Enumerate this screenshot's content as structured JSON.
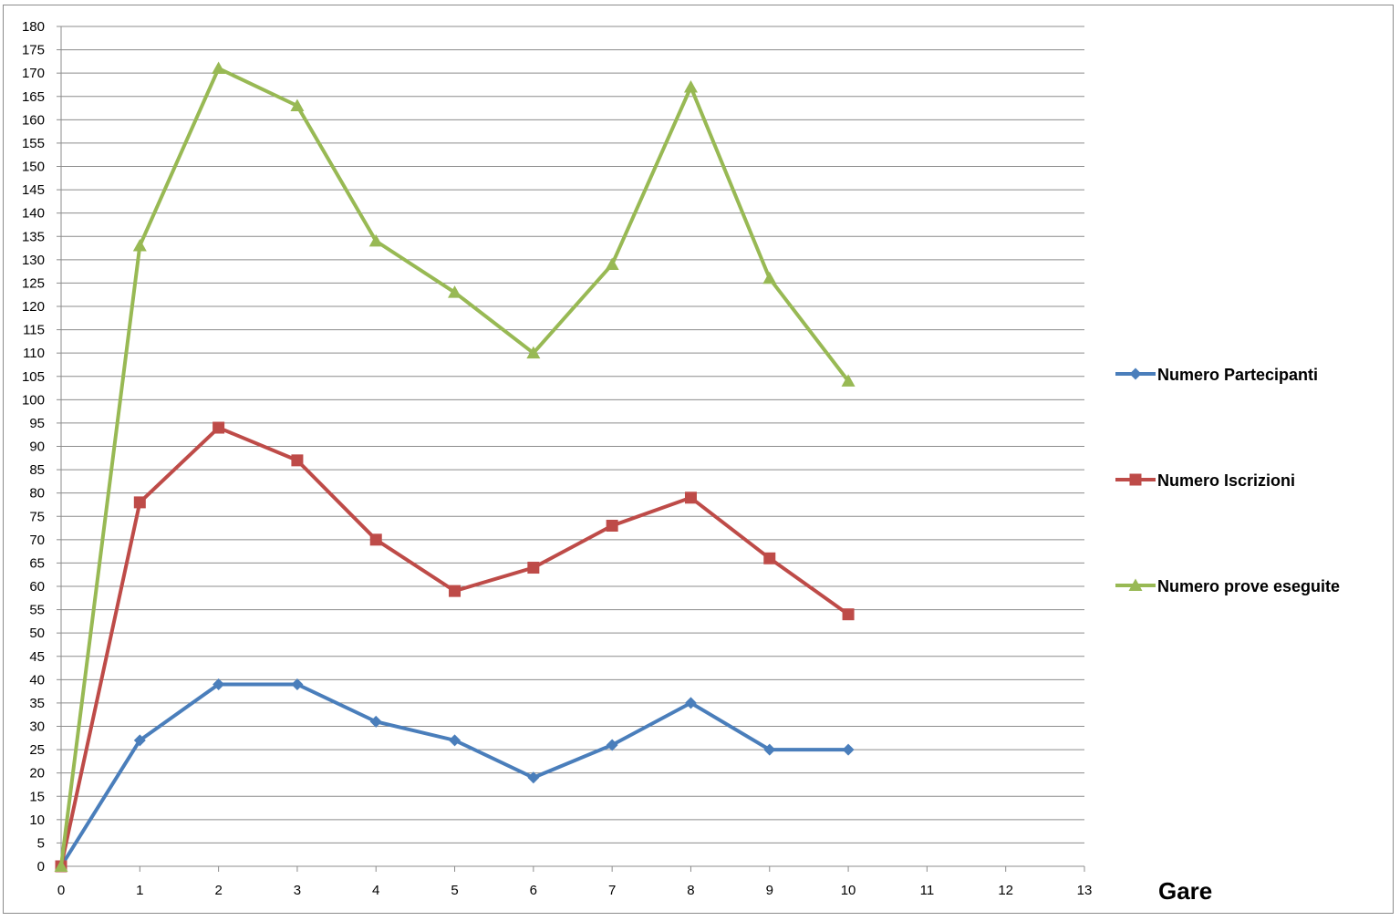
{
  "chart_data": {
    "type": "line",
    "title": "",
    "xlabel": "Gare",
    "ylabel": "",
    "x": [
      0,
      1,
      2,
      3,
      4,
      5,
      6,
      7,
      8,
      9,
      10
    ],
    "xlim": [
      0,
      13
    ],
    "ylim": [
      0,
      180
    ],
    "x_ticks": [
      0,
      1,
      2,
      3,
      4,
      5,
      6,
      7,
      8,
      9,
      10,
      11,
      12,
      13
    ],
    "y_ticks": [
      0,
      5,
      10,
      15,
      20,
      25,
      30,
      35,
      40,
      45,
      50,
      55,
      60,
      65,
      70,
      75,
      80,
      85,
      90,
      95,
      100,
      105,
      110,
      115,
      120,
      125,
      130,
      135,
      140,
      145,
      150,
      155,
      160,
      165,
      170,
      175,
      180
    ],
    "grid": "horizontal",
    "legend_position": "right",
    "series": [
      {
        "name": "Numero Partecipanti",
        "color": "#4a7ebb",
        "marker": "diamond",
        "values": [
          0,
          27,
          39,
          39,
          31,
          27,
          19,
          26,
          35,
          25,
          25
        ]
      },
      {
        "name": "Numero Iscrizioni",
        "color": "#be4b48",
        "marker": "square",
        "values": [
          0,
          78,
          94,
          87,
          70,
          59,
          64,
          73,
          79,
          66,
          54
        ]
      },
      {
        "name": "Numero prove eseguite",
        "color": "#98b954",
        "marker": "triangle",
        "values": [
          0,
          133,
          171,
          163,
          134,
          123,
          110,
          129,
          167,
          126,
          104
        ]
      }
    ]
  }
}
